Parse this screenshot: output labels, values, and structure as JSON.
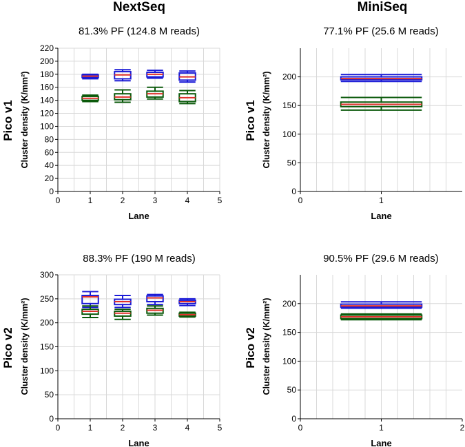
{
  "column_headers": [
    "NextSeq",
    "MiniSeq"
  ],
  "row_labels": [
    "Pico v1",
    "Pico v2"
  ],
  "colors": {
    "upper": "#1a1ad6",
    "lower": "#0b5a0b",
    "median": "#e0302a",
    "grid": "#d8d8d8"
  },
  "chart_data": [
    {
      "type": "box",
      "panel": "nextseq-v1",
      "title": "81.3% PF (124.8 M reads)",
      "xlabel": "Lane",
      "ylabel": "Cluster density (K/mm²)",
      "xlim": [
        0,
        5
      ],
      "ylim": [
        0,
        220
      ],
      "box_half_width": 0.25,
      "xticks": [
        0,
        1,
        2,
        3,
        4,
        5
      ],
      "yticks": [
        0,
        20,
        40,
        60,
        80,
        100,
        120,
        140,
        160,
        180,
        200,
        220
      ],
      "vgrid": [
        0.5,
        1,
        1.5,
        2,
        2.5,
        3,
        3.5,
        4,
        4.5,
        5
      ],
      "series": [
        {
          "name": "upper",
          "boxes": [
            {
              "x": 1,
              "whislo": 173,
              "q1": 175,
              "med": 177,
              "q3": 179,
              "whishi": 180
            },
            {
              "x": 2,
              "whislo": 170,
              "q1": 173,
              "med": 179,
              "q3": 184,
              "whishi": 187
            },
            {
              "x": 3,
              "whislo": 174,
              "q1": 176,
              "med": 180,
              "q3": 183,
              "whishi": 186
            },
            {
              "x": 4,
              "whislo": 168,
              "q1": 171,
              "med": 176,
              "q3": 182,
              "whishi": 185
            }
          ]
        },
        {
          "name": "lower",
          "boxes": [
            {
              "x": 1,
              "whislo": 138,
              "q1": 140,
              "med": 143,
              "q3": 146,
              "whishi": 148
            },
            {
              "x": 2,
              "whislo": 137,
              "q1": 141,
              "med": 145,
              "q3": 150,
              "whishi": 156
            },
            {
              "x": 3,
              "whislo": 142,
              "q1": 145,
              "med": 150,
              "q3": 154,
              "whishi": 160
            },
            {
              "x": 4,
              "whislo": 135,
              "q1": 138,
              "med": 144,
              "q3": 150,
              "whishi": 155
            }
          ]
        }
      ]
    },
    {
      "type": "box",
      "panel": "miniseq-v1",
      "title": "77.1% PF (25.6 M reads)",
      "xlabel": "Lane",
      "ylabel": "Cluster density (K/mm²)",
      "xlim": [
        0,
        2
      ],
      "ylim": [
        0,
        250
      ],
      "box_half_width": 0.5,
      "xticks": [
        0,
        1
      ],
      "yticks": [
        0,
        50,
        100,
        150,
        200
      ],
      "vgrid": [
        0.2,
        0.4,
        0.6,
        0.8,
        1,
        1.2,
        1.4,
        1.6,
        1.8
      ],
      "series": [
        {
          "name": "upper",
          "boxes": [
            {
              "x": 1,
              "whislo": 192,
              "q1": 195,
              "med": 197,
              "q3": 200,
              "whishi": 204
            }
          ]
        },
        {
          "name": "lower",
          "boxes": [
            {
              "x": 1,
              "whislo": 142,
              "q1": 148,
              "med": 152,
              "q3": 156,
              "whishi": 164
            }
          ]
        }
      ]
    },
    {
      "type": "box",
      "panel": "nextseq-v2",
      "title": "88.3% PF (190 M reads)",
      "xlabel": "Lane",
      "ylabel": "Cluster density (K/mm²)",
      "xlim": [
        0,
        5
      ],
      "ylim": [
        0,
        300
      ],
      "box_half_width": 0.25,
      "xticks": [
        0,
        1,
        2,
        3,
        4,
        5
      ],
      "yticks": [
        0,
        50,
        100,
        150,
        200,
        250,
        300
      ],
      "vgrid": [
        0.5,
        1,
        1.5,
        2,
        2.5,
        3,
        3.5,
        4,
        4.5,
        5
      ],
      "series": [
        {
          "name": "upper",
          "boxes": [
            {
              "x": 1,
              "whislo": 232,
              "q1": 240,
              "med": 254,
              "q3": 257,
              "whishi": 265
            },
            {
              "x": 2,
              "whislo": 232,
              "q1": 238,
              "med": 244,
              "q3": 249,
              "whishi": 257
            },
            {
              "x": 3,
              "whislo": 238,
              "q1": 244,
              "med": 252,
              "q3": 256,
              "whishi": 259
            },
            {
              "x": 4,
              "whislo": 236,
              "q1": 240,
              "med": 244,
              "q3": 247,
              "whishi": 250
            }
          ]
        },
        {
          "name": "lower",
          "boxes": [
            {
              "x": 1,
              "whislo": 211,
              "q1": 218,
              "med": 224,
              "q3": 228,
              "whishi": 235
            },
            {
              "x": 2,
              "whislo": 207,
              "q1": 214,
              "med": 220,
              "q3": 224,
              "whishi": 228
            },
            {
              "x": 3,
              "whislo": 216,
              "q1": 220,
              "med": 226,
              "q3": 230,
              "whishi": 235
            },
            {
              "x": 4,
              "whislo": 212,
              "q1": 214,
              "med": 217,
              "q3": 220,
              "whishi": 222
            }
          ]
        }
      ]
    },
    {
      "type": "box",
      "panel": "miniseq-v2",
      "title": "90.5% PF (29.6 M reads)",
      "xlabel": "Lane",
      "ylabel": "Cluster density (K/mm²)",
      "xlim": [
        0,
        2
      ],
      "ylim": [
        0,
        250
      ],
      "box_half_width": 0.5,
      "xticks": [
        0,
        1,
        2
      ],
      "yticks": [
        0,
        50,
        100,
        150,
        200
      ],
      "vgrid": [
        0.2,
        0.4,
        0.6,
        0.8,
        1,
        1.2,
        1.4,
        1.6,
        1.8
      ],
      "series": [
        {
          "name": "upper",
          "boxes": [
            {
              "x": 1,
              "whislo": 192,
              "q1": 194,
              "med": 196,
              "q3": 199,
              "whishi": 203
            }
          ]
        },
        {
          "name": "lower",
          "boxes": [
            {
              "x": 1,
              "whislo": 172,
              "q1": 174,
              "med": 177,
              "q3": 180,
              "whishi": 182
            }
          ]
        }
      ]
    }
  ]
}
